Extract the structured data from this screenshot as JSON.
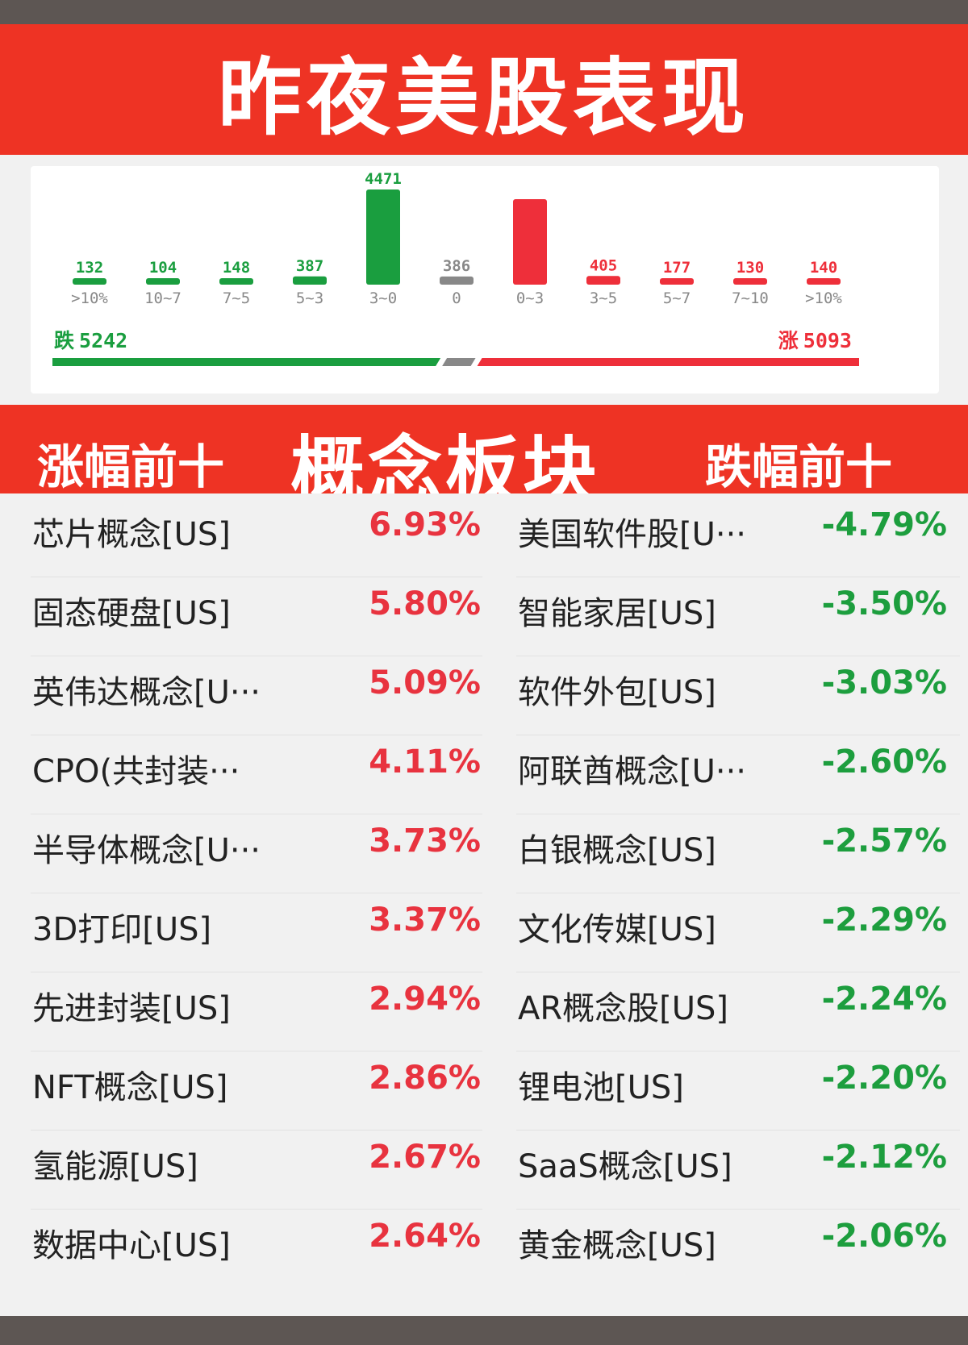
{
  "header": {
    "title": "昨夜美股表现"
  },
  "chart_data": {
    "type": "bar",
    "categories": [
      ">10%",
      "10~7",
      "7~5",
      "5~3",
      "3~0",
      "0",
      "0~3",
      "3~5",
      "5~7",
      "7~10",
      ">10%"
    ],
    "values": [
      132,
      104,
      148,
      387,
      4471,
      386,
      null,
      405,
      177,
      130,
      140
    ],
    "value_labels": [
      "132",
      "104",
      "148",
      "387",
      "4471",
      "386",
      "",
      "405",
      "177",
      "130",
      "140"
    ],
    "bar_colors": [
      "#1a9e3f",
      "#1a9e3f",
      "#1a9e3f",
      "#1a9e3f",
      "#1a9e3f",
      "#888888",
      "#ee2f3a",
      "#ee2f3a",
      "#ee2f3a",
      "#ee2f3a",
      "#ee2f3a"
    ],
    "ylim": [
      0,
      4471
    ]
  },
  "summary": {
    "fall_label": "跌",
    "fall_count": "5242",
    "fall_value": 5242,
    "flat_value": 386,
    "rise_label": "涨",
    "rise_count": "5093",
    "rise_value": 5093,
    "fall_color": "#1a9e3f",
    "flat_color": "#888888",
    "rise_color": "#ee2f3a"
  },
  "concept": {
    "left_label": "涨幅前十",
    "center_label": "概念板块",
    "right_label": "跌幅前十"
  },
  "rows": [
    {
      "gain_name": "芯片概念[US]",
      "gain_value": "6.93%",
      "loss_name": "美国软件股[U···",
      "loss_value": "-4.79%"
    },
    {
      "gain_name": "固态硬盘[US]",
      "gain_value": "5.80%",
      "loss_name": "智能家居[US]",
      "loss_value": "-3.50%"
    },
    {
      "gain_name": "英伟达概念[U···",
      "gain_value": "5.09%",
      "loss_name": "软件外包[US]",
      "loss_value": "-3.03%"
    },
    {
      "gain_name": "CPO(共封装···",
      "gain_value": "4.11%",
      "loss_name": "阿联酋概念[U···",
      "loss_value": "-2.60%"
    },
    {
      "gain_name": "半导体概念[U···",
      "gain_value": "3.73%",
      "loss_name": "白银概念[US]",
      "loss_value": "-2.57%"
    },
    {
      "gain_name": "3D打印[US]",
      "gain_value": "3.37%",
      "loss_name": "文化传媒[US]",
      "loss_value": "-2.29%"
    },
    {
      "gain_name": "先进封装[US]",
      "gain_value": "2.94%",
      "loss_name": "AR概念股[US]",
      "loss_value": "-2.24%"
    },
    {
      "gain_name": "NFT概念[US]",
      "gain_value": "2.86%",
      "loss_name": "锂电池[US]",
      "loss_value": "-2.20%"
    },
    {
      "gain_name": "氢能源[US]",
      "gain_value": "2.67%",
      "loss_name": "SaaS概念[US]",
      "loss_value": "-2.12%"
    },
    {
      "gain_name": "数据中心[US]",
      "gain_value": "2.64%",
      "loss_name": "黄金概念[US]",
      "loss_value": "-2.06%"
    }
  ]
}
